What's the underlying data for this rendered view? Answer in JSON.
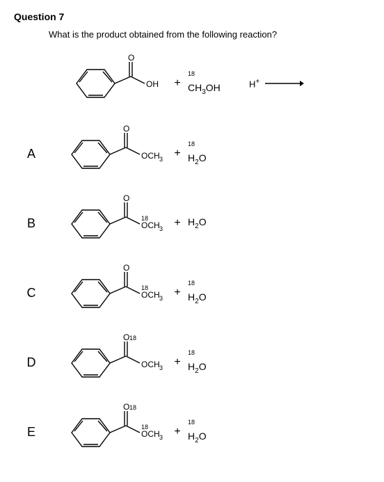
{
  "question_number": "Question 7",
  "prompt_text": "What is the product obtained from the following reaction?",
  "reaction": {
    "reagent1_substituent": "OH",
    "reagent2_prefix_iso": "18",
    "reagent2_formula_html": "CH<sub>3</sub>OH",
    "catalyst_html": "H<sup class='sup'>+</sup>",
    "plus": "+"
  },
  "options": {
    "A": {
      "label": "A",
      "carbonyl_O_iso": "",
      "substituent_iso": "",
      "substituent_formula_html": "OCH<sub>3</sub>",
      "byproduct_iso": "18",
      "byproduct_html": "H<sub>2</sub>O"
    },
    "B": {
      "label": "B",
      "carbonyl_O_iso": "",
      "substituent_iso": "18",
      "substituent_formula_html": "OCH<sub>3</sub>",
      "byproduct_iso": "",
      "byproduct_html": "H<sub>2</sub>O"
    },
    "C": {
      "label": "C",
      "carbonyl_O_iso": "",
      "substituent_iso": "18",
      "substituent_formula_html": "OCH<sub>3</sub>",
      "byproduct_iso": "18",
      "byproduct_html": "H<sub>2</sub>O"
    },
    "D": {
      "label": "D",
      "carbonyl_O_iso": "18",
      "substituent_iso": "",
      "substituent_formula_html": "OCH<sub>3</sub>",
      "byproduct_iso": "18",
      "byproduct_html": "H<sub>2</sub>O"
    },
    "E": {
      "label": "E",
      "carbonyl_O_iso": "18",
      "substituent_iso": "18",
      "substituent_formula_html": "OCH<sub>3</sub>",
      "byproduct_iso": "18",
      "byproduct_html": "H<sub>2</sub>O"
    }
  },
  "style": {
    "stroke": "#000000",
    "stroke_width": 1.4,
    "font_family": "Arial"
  }
}
